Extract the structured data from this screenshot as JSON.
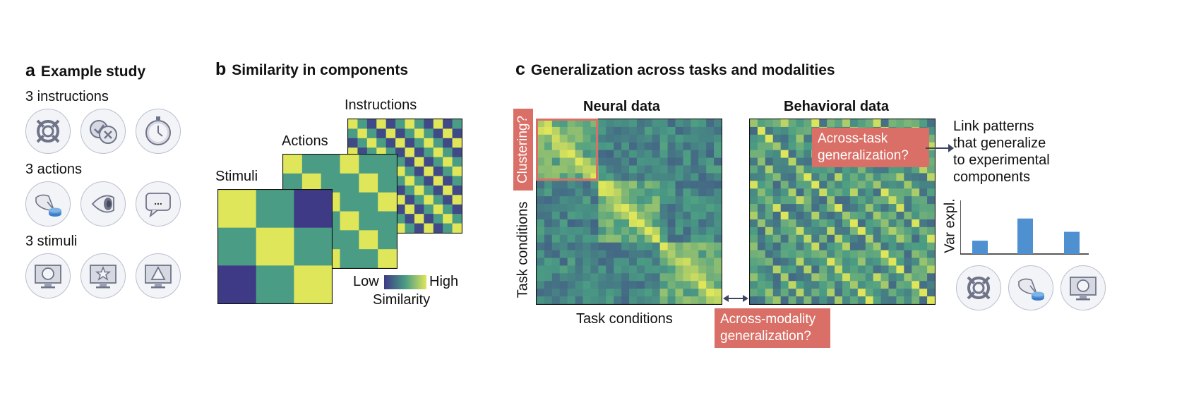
{
  "panel_a": {
    "letter": "a",
    "title": "Example study",
    "rows": [
      {
        "label": "3 instructions",
        "icons": [
          "target-icon",
          "check-cross-icon",
          "stopwatch-icon"
        ]
      },
      {
        "label": "3 actions",
        "icons": [
          "button-press-icon",
          "eye-icon",
          "speech-bubble-icon"
        ]
      },
      {
        "label": "3 stimuli",
        "icons": [
          "monitor-circle-icon",
          "monitor-star-icon",
          "monitor-triangle-icon"
        ]
      }
    ],
    "speech_text": "..."
  },
  "panel_b": {
    "letter": "b",
    "title": "Similarity in components",
    "layers": [
      {
        "label": "Instructions",
        "grid": 12
      },
      {
        "label": "Actions",
        "grid": 6
      },
      {
        "label": "Stimuli",
        "grid": 3
      }
    ],
    "colorbar": {
      "low": "Low",
      "high": "High",
      "title": "Similarity"
    }
  },
  "panel_c": {
    "letter": "c",
    "title": "Generalization across tasks and modalities",
    "neural_title": "Neural data",
    "behavioral_title": "Behavioral data",
    "x_label": "Task conditions",
    "y_label": "Task conditions",
    "clustering_label": "Clustering?",
    "across_task_label_1": "Across-task",
    "across_task_label_2": "generalization?",
    "across_modality_label_1": "Across-modality",
    "across_modality_label_2": "generalization?",
    "link_text_1": "Link patterns",
    "link_text_2": "that generalize",
    "link_text_3": "to experimental",
    "link_text_4": "components",
    "bar_ylabel": "Var expl.",
    "bar_values": [
      0.3,
      0.8,
      0.5
    ],
    "bar_icons": [
      "target-icon",
      "button-press-icon",
      "monitor-circle-icon"
    ]
  },
  "colors": {
    "low": "#3e3a86",
    "mid": "#4a9c84",
    "high": "#dfe65a",
    "bar": "#4f90d1",
    "highlight": "#d96f66",
    "icon": "#6f7488"
  }
}
